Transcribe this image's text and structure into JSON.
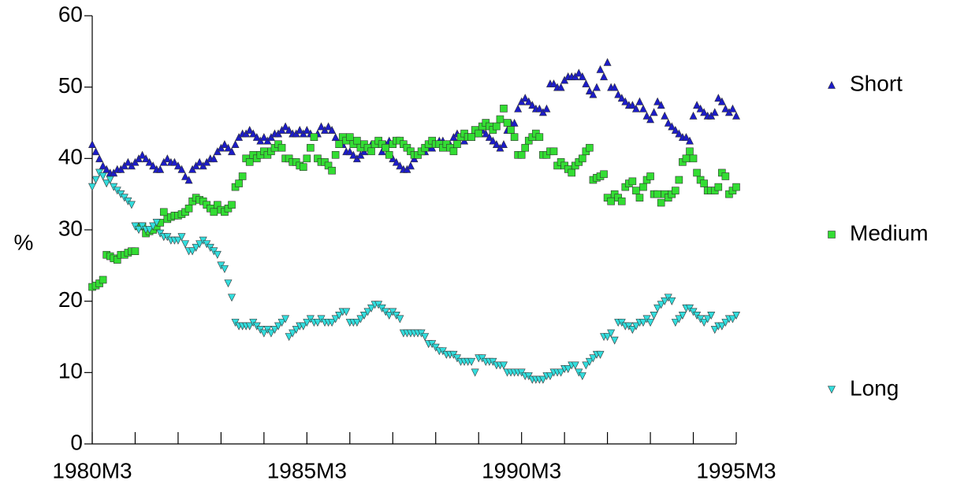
{
  "chart_data": {
    "type": "scatter",
    "y_label": "%",
    "legend": "right",
    "categories": [
      "1980M3",
      null,
      null,
      null,
      null,
      null,
      null,
      null,
      null,
      null,
      null,
      null,
      null,
      null,
      null,
      null,
      null,
      null,
      null,
      null,
      null,
      null,
      null,
      null,
      null,
      null,
      null,
      null,
      null,
      null,
      null,
      null,
      null,
      null,
      null,
      null,
      null,
      null,
      null,
      null,
      null,
      null,
      null,
      null,
      null,
      null,
      null,
      null,
      null,
      null,
      null,
      null,
      null,
      null,
      null,
      null,
      null,
      null,
      null,
      null,
      "1985M3",
      null,
      null,
      null,
      null,
      null,
      null,
      null,
      null,
      null,
      null,
      null,
      null,
      null,
      null,
      null,
      null,
      null,
      null,
      null,
      null,
      null,
      null,
      null,
      null,
      null,
      null,
      null,
      null,
      null,
      null,
      null,
      null,
      null,
      null,
      null,
      null,
      null,
      null,
      null,
      null,
      null,
      null,
      null,
      null,
      null,
      null,
      null,
      null,
      null,
      null,
      null,
      null,
      null,
      null,
      null,
      null,
      null,
      null,
      null,
      "1990M3",
      null,
      null,
      null,
      null,
      null,
      null,
      null,
      null,
      null,
      null,
      null,
      null,
      null,
      null,
      null,
      null,
      null,
      null,
      null,
      null,
      null,
      null,
      null,
      null,
      null,
      null,
      null,
      null,
      null,
      null,
      null,
      null,
      null,
      null,
      null,
      null,
      null,
      null,
      null,
      null,
      null,
      null,
      null,
      null,
      null,
      null,
      null,
      null,
      null,
      null,
      null,
      null,
      null,
      null,
      null,
      null,
      null,
      null,
      null,
      "1995M3"
    ],
    "ylim": [
      0,
      60
    ],
    "yticks": [
      0,
      10,
      20,
      30,
      40,
      50,
      60
    ],
    "series": [
      {
        "name": "Short",
        "color": "#1c1cc8",
        "marker": "triangle-up",
        "values": [
          42,
          41,
          40,
          39,
          38.5,
          38,
          38,
          38.5,
          38.5,
          39,
          39.5,
          39,
          39.5,
          40,
          40.5,
          40,
          39.5,
          39,
          38.5,
          38.5,
          39.5,
          40,
          39.5,
          39.5,
          39,
          38.5,
          37.5,
          37,
          38.5,
          39,
          39.5,
          39,
          39.5,
          40,
          40,
          41,
          41.5,
          42,
          41.5,
          41,
          42,
          43,
          43.5,
          43.5,
          44,
          43.5,
          43,
          42.5,
          43,
          42.5,
          43,
          43.5,
          43.5,
          44,
          44.5,
          44,
          43.5,
          43.5,
          44,
          43.5,
          44,
          43.5,
          43,
          43.5,
          44.5,
          44,
          44.5,
          44,
          43,
          42,
          42,
          41,
          41,
          40.5,
          40,
          40.5,
          41,
          41.5,
          42,
          42,
          42,
          41,
          42,
          42.5,
          40,
          39.5,
          39,
          38.5,
          38.5,
          39,
          40,
          40.5,
          41,
          41,
          41.5,
          41.5,
          42,
          42.5,
          42.5,
          42,
          42,
          43,
          43.5,
          43,
          42.5,
          43,
          43,
          43.5,
          44,
          44,
          43.5,
          43,
          42.5,
          42,
          41.5,
          42,
          44,
          45,
          45,
          47,
          48,
          48.5,
          48,
          47.5,
          47,
          47,
          46.5,
          47,
          50.5,
          50.5,
          50,
          50,
          51,
          51.5,
          51.5,
          51.5,
          52,
          51.5,
          50.5,
          49.5,
          49,
          50,
          52.5,
          51.5,
          53.5,
          50,
          50,
          49,
          48.5,
          48,
          47.5,
          47.5,
          47,
          48,
          47,
          46,
          45.5,
          46.5,
          48,
          47.5,
          46,
          45,
          44.5,
          44,
          43.5,
          43,
          43,
          42.5,
          46,
          47.5,
          47,
          46.5,
          46,
          46,
          46.5,
          48.5,
          48,
          47,
          46.5,
          47,
          46
        ]
      },
      {
        "name": "Medium",
        "color": "#33dd33",
        "marker": "square",
        "values": [
          22,
          22.2,
          22.5,
          23,
          26.5,
          26.3,
          26,
          25.8,
          26.5,
          26.5,
          26.8,
          27,
          27,
          30.5,
          30.5,
          29.5,
          29.8,
          30,
          30.5,
          31,
          32.5,
          31.5,
          31.8,
          32,
          32,
          32.2,
          32.5,
          33,
          34,
          34.5,
          34.2,
          34,
          33.5,
          33,
          32.5,
          33.5,
          32.8,
          32.5,
          33,
          33.5,
          36,
          36.5,
          37.5,
          40,
          39.5,
          40.5,
          40,
          40.5,
          41,
          40.5,
          41,
          41.5,
          42,
          41.5,
          40,
          40,
          39.5,
          39.5,
          39,
          38.8,
          40,
          41.5,
          43,
          40,
          39.5,
          39.5,
          39,
          38.3,
          40.5,
          42,
          43,
          42.5,
          43,
          42,
          42.5,
          41.5,
          42,
          41.5,
          41,
          42,
          42.5,
          42,
          41.5,
          40.5,
          42,
          42.5,
          42.5,
          42,
          41.5,
          41,
          40.5,
          40.5,
          41,
          41.5,
          42,
          42.5,
          42,
          42,
          41.5,
          42,
          41.5,
          41,
          42,
          43,
          43.5,
          43,
          43,
          44,
          43.5,
          44.5,
          45,
          44.5,
          44,
          44.5,
          45.5,
          47,
          45,
          44,
          43,
          40.5,
          40.5,
          41.5,
          42.5,
          43,
          43.5,
          43,
          40.5,
          40.5,
          41,
          41,
          39,
          39.5,
          39,
          38.5,
          38,
          39,
          39.5,
          40,
          41,
          41.5,
          37,
          37.3,
          37.5,
          37.8,
          34.5,
          34,
          35,
          34.5,
          34,
          36,
          36.5,
          36.8,
          35.5,
          34.5,
          36,
          37,
          37.5,
          35,
          35,
          33.8,
          35,
          34.5,
          35,
          35.5,
          37,
          39.5,
          40,
          41,
          40,
          38,
          37,
          36.5,
          35.5,
          35.5,
          35.5,
          36,
          38,
          37.5,
          35,
          35.5,
          36
        ]
      },
      {
        "name": "Long",
        "color": "#33dddd",
        "marker": "triangle-down",
        "values": [
          36,
          37,
          38,
          37.5,
          36.5,
          37,
          36,
          35.5,
          35,
          34.5,
          34,
          33.5,
          30.5,
          30,
          30.5,
          30,
          30,
          30.5,
          31,
          29.5,
          29,
          29,
          28.5,
          28.5,
          28.5,
          29,
          28,
          27,
          27,
          27.5,
          28,
          28.5,
          28,
          27.5,
          27,
          26.5,
          25,
          24.5,
          22.5,
          20.5,
          17,
          16.5,
          16.5,
          16.5,
          16.5,
          17,
          16.5,
          16,
          15.5,
          16,
          15.5,
          16,
          16.5,
          17,
          17.5,
          15,
          15.5,
          16,
          16.5,
          16.5,
          17,
          17.5,
          17,
          17,
          17.5,
          17,
          17,
          17,
          17.5,
          18,
          18.5,
          18.5,
          17,
          17,
          17,
          17.5,
          18,
          18.5,
          19,
          19.5,
          19.5,
          19,
          18.5,
          18,
          18.5,
          18,
          17.5,
          15.5,
          15.5,
          15.5,
          15.5,
          15.5,
          15.5,
          15,
          14,
          14,
          13.5,
          13,
          13,
          12.5,
          12.5,
          12.5,
          12,
          11.5,
          11.5,
          11.5,
          11.5,
          10,
          12,
          12,
          11.5,
          11.5,
          11.5,
          11,
          11,
          11,
          10,
          10,
          10,
          10,
          10,
          9.5,
          9.5,
          9,
          9,
          9,
          9,
          9.5,
          9.5,
          10,
          10,
          10,
          10.5,
          10.5,
          11,
          11,
          10,
          9.5,
          11,
          11.5,
          12,
          12.5,
          12.5,
          15,
          15,
          15.5,
          14.5,
          17,
          17,
          16.5,
          16.5,
          16,
          16.5,
          17,
          17,
          17.5,
          17,
          18,
          19,
          19.5,
          20,
          20.5,
          20,
          17,
          17.5,
          18,
          19,
          19,
          18.5,
          18,
          17.5,
          17,
          17.5,
          18,
          16,
          16.5,
          16.5,
          17,
          17.5,
          17.5,
          18
        ]
      }
    ]
  }
}
